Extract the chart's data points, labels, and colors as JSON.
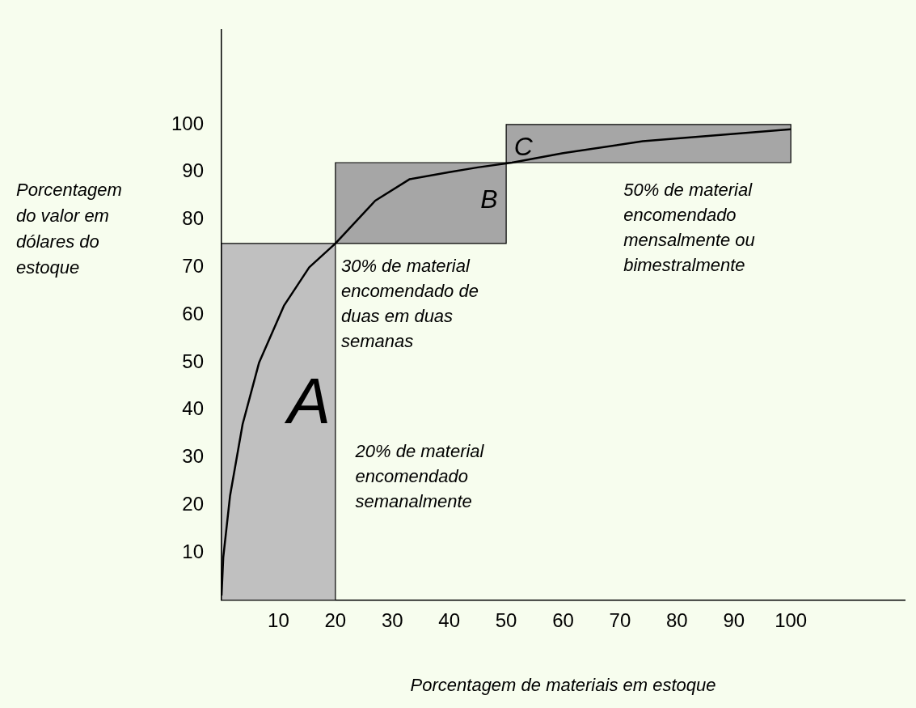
{
  "chart_data": {
    "type": "line",
    "xlabel": "Porcentagem de materiais em estoque",
    "ylabel": "Porcentagem\ndo valor em\ndólares do\nestoque",
    "xlim": [
      0,
      120
    ],
    "ylim": [
      0,
      120
    ],
    "xticks": [
      10,
      20,
      30,
      40,
      50,
      60,
      70,
      80,
      90,
      100
    ],
    "yticks": [
      10,
      20,
      30,
      40,
      50,
      60,
      70,
      80,
      90,
      100
    ],
    "grid": false,
    "legend": false,
    "marker": "none",
    "line_style": "solid",
    "series": [
      {
        "type": "area",
        "color": "#c0c0c0",
        "x": [
          0,
          0,
          20,
          20,
          0
        ],
        "values": [
          0,
          75,
          75,
          0,
          0
        ]
      },
      {
        "type": "area",
        "color": "#a6a6a6",
        "x": [
          20,
          20,
          50,
          50,
          20
        ],
        "values": [
          75,
          92,
          92,
          75,
          75
        ]
      },
      {
        "type": "area",
        "color": "#a6a6a6",
        "x": [
          50,
          50,
          100,
          100,
          50
        ],
        "values": [
          92,
          100,
          100,
          92,
          92
        ]
      },
      {
        "type": "line",
        "color": "#000000",
        "x": [
          0,
          0.3,
          1.5,
          3.7,
          6.6,
          11,
          15.4,
          20,
          27,
          33,
          40,
          45,
          51,
          60,
          74,
          100
        ],
        "values": [
          1,
          9,
          22,
          37,
          50,
          62,
          70,
          75,
          84,
          88.5,
          90,
          91,
          92,
          94,
          96.5,
          99
        ]
      }
    ],
    "annotations": [
      "A",
      "B",
      "C",
      "30% de material\nencomendado de\nduas em duas\nsemanas",
      "20% de material\nencomendado\nsemanalmente",
      "50% de material\nencomendado\nmensalmente ou\nbimestralmente"
    ]
  }
}
